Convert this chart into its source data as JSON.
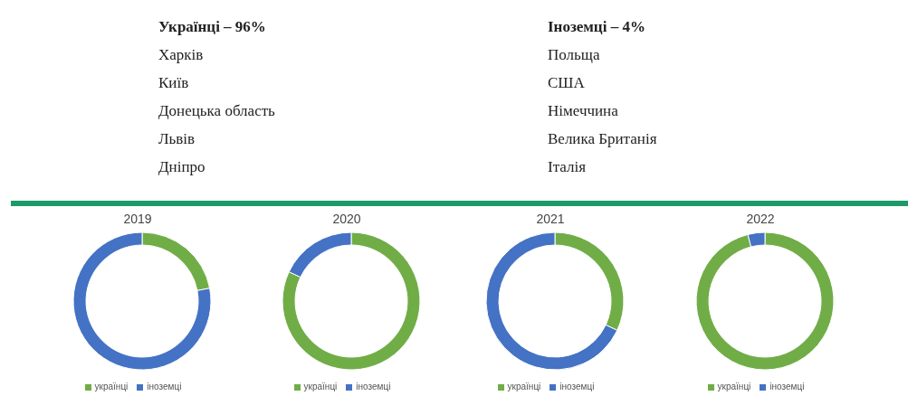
{
  "chart_data": [
    {
      "type": "other",
      "title": "Українці – 96%",
      "annotations": [
        "Харків",
        "Київ",
        "Донецька область",
        "Львів",
        "Дніпро"
      ]
    },
    {
      "type": "other",
      "title": "Іноземці – 4%",
      "annotations": [
        "Польща",
        "США",
        "Німеччина",
        "Велика Британія",
        "Італія"
      ]
    },
    {
      "type": "donut",
      "title": "2019",
      "categories": [
        "українці",
        "іноземці"
      ],
      "values": [
        22,
        78
      ],
      "colors": [
        "#70ad47",
        "#4472c4"
      ],
      "legend": "bottom"
    },
    {
      "type": "donut",
      "title": "2020",
      "categories": [
        "українці",
        "іноземці"
      ],
      "values": [
        82,
        18
      ],
      "colors": [
        "#70ad47",
        "#4472c4"
      ],
      "legend": "bottom"
    },
    {
      "type": "donut",
      "title": "2021",
      "categories": [
        "українці",
        "іноземці"
      ],
      "values": [
        32,
        68
      ],
      "colors": [
        "#70ad47",
        "#4472c4"
      ],
      "legend": "bottom"
    },
    {
      "type": "donut",
      "title": "2022",
      "categories": [
        "українці",
        "іноземці"
      ],
      "values": [
        96,
        4
      ],
      "colors": [
        "#70ad47",
        "#4472c4"
      ],
      "legend": "bottom"
    }
  ]
}
